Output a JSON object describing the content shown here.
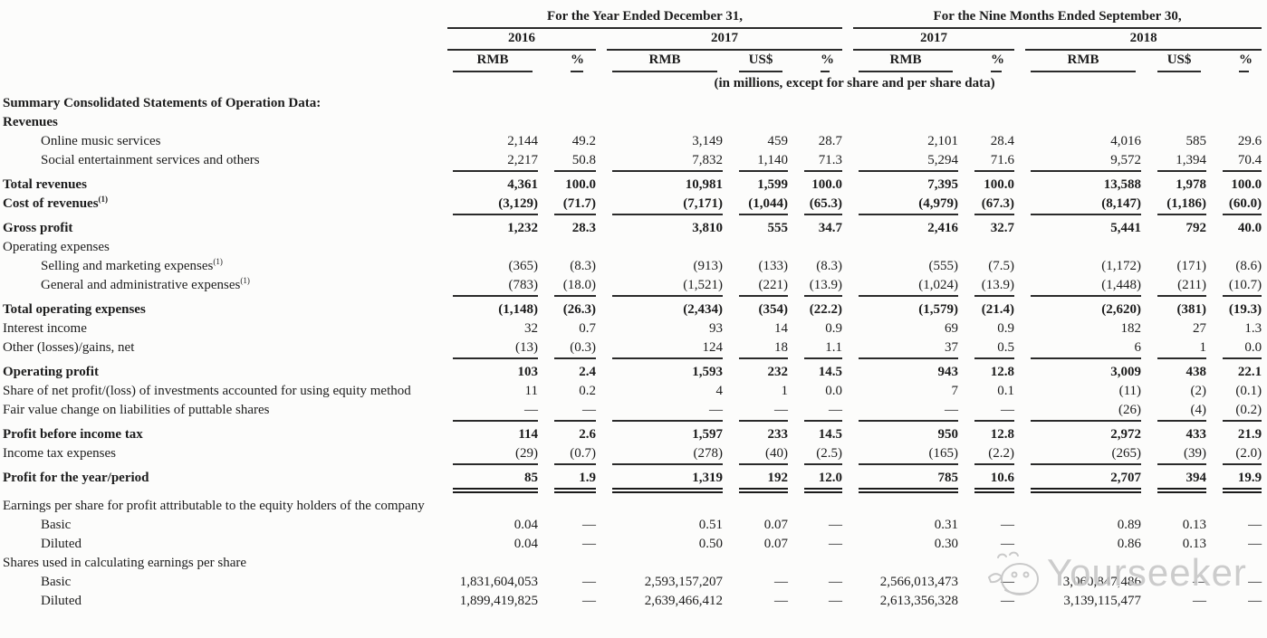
{
  "document": {
    "header": {
      "group1": {
        "title": "For the Year Ended December 31,",
        "years": [
          {
            "label": "2016",
            "cols": [
              "RMB",
              "%"
            ]
          },
          {
            "label": "2017",
            "cols": [
              "RMB",
              "US$",
              "%"
            ]
          }
        ]
      },
      "group2": {
        "title": "For the Nine Months Ended September 30,",
        "years": [
          {
            "label": "2017",
            "cols": [
              "RMB",
              "%"
            ]
          },
          {
            "label": "2018",
            "cols": [
              "RMB",
              "US$",
              "%"
            ]
          }
        ]
      },
      "units_note": "(in millions, except for share and per share data)"
    },
    "columns": [
      "2016 RMB",
      "2016 %",
      "2017 RMB",
      "2017 US$",
      "2017 %",
      "9M2017 RMB",
      "9M2017 %",
      "9M2018 RMB",
      "9M2018 US$",
      "9M2018 %"
    ],
    "rows": [
      {
        "label": "Summary Consolidated Statements of Operation Data:",
        "bold": true,
        "indent": 0,
        "values": []
      },
      {
        "label": "Revenues",
        "bold": true,
        "indent": 0,
        "values": []
      },
      {
        "label": "Online music services",
        "indent": 1,
        "values": [
          "2,144",
          "49.2",
          "3,149",
          "459",
          "28.7",
          "2,101",
          "28.4",
          "4,016",
          "585",
          "29.6"
        ]
      },
      {
        "label": "Social entertainment services and others",
        "indent": 1,
        "underline": "single",
        "values": [
          "2,217",
          "50.8",
          "7,832",
          "1,140",
          "71.3",
          "5,294",
          "71.6",
          "9,572",
          "1,394",
          "70.4"
        ]
      },
      {
        "label": "Total revenues",
        "bold": true,
        "gap": true,
        "indent": 0,
        "values": [
          "4,361",
          "100.0",
          "10,981",
          "1,599",
          "100.0",
          "7,395",
          "100.0",
          "13,588",
          "1,978",
          "100.0"
        ]
      },
      {
        "label": "Cost of revenues",
        "sup": "(1)",
        "bold": true,
        "underline": "single",
        "indent": 0,
        "values": [
          "(3,129)",
          "(71.7)",
          "(7,171)",
          "(1,044)",
          "(65.3)",
          "(4,979)",
          "(67.3)",
          "(8,147)",
          "(1,186)",
          "(60.0)"
        ]
      },
      {
        "label": "Gross profit",
        "bold": true,
        "gap": true,
        "indent": 0,
        "values": [
          "1,232",
          "28.3",
          "3,810",
          "555",
          "34.7",
          "2,416",
          "32.7",
          "5,441",
          "792",
          "40.0"
        ]
      },
      {
        "label": "Operating expenses",
        "indent": 0,
        "values": []
      },
      {
        "label": "Selling and marketing expenses",
        "sup": "(1)",
        "indent": 1,
        "values": [
          "(365)",
          "(8.3)",
          "(913)",
          "(133)",
          "(8.3)",
          "(555)",
          "(7.5)",
          "(1,172)",
          "(171)",
          "(8.6)"
        ]
      },
      {
        "label": "General and administrative expenses",
        "sup": "(1)",
        "indent": 1,
        "underline": "single",
        "values": [
          "(783)",
          "(18.0)",
          "(1,521)",
          "(221)",
          "(13.9)",
          "(1,024)",
          "(13.9)",
          "(1,448)",
          "(211)",
          "(10.7)"
        ]
      },
      {
        "label": "Total operating expenses",
        "bold": true,
        "gap": true,
        "indent": 0,
        "values": [
          "(1,148)",
          "(26.3)",
          "(2,434)",
          "(354)",
          "(22.2)",
          "(1,579)",
          "(21.4)",
          "(2,620)",
          "(381)",
          "(19.3)"
        ]
      },
      {
        "label": "Interest income",
        "indent": 0,
        "values": [
          "32",
          "0.7",
          "93",
          "14",
          "0.9",
          "69",
          "0.9",
          "182",
          "27",
          "1.3"
        ]
      },
      {
        "label": "Other (losses)/gains, net",
        "indent": 0,
        "underline": "single",
        "values": [
          "(13)",
          "(0.3)",
          "124",
          "18",
          "1.1",
          "37",
          "0.5",
          "6",
          "1",
          "0.0"
        ]
      },
      {
        "label": "Operating profit",
        "bold": true,
        "gap": true,
        "indent": 0,
        "values": [
          "103",
          "2.4",
          "1,593",
          "232",
          "14.5",
          "943",
          "12.8",
          "3,009",
          "438",
          "22.1"
        ]
      },
      {
        "label": "Share of net profit/(loss) of investments accounted for using equity method",
        "indent": 0,
        "values": [
          "11",
          "0.2",
          "4",
          "1",
          "0.0",
          "7",
          "0.1",
          "(11)",
          "(2)",
          "(0.1)"
        ]
      },
      {
        "label": "Fair value change on liabilities of puttable shares",
        "indent": 0,
        "underline": "single",
        "values": [
          "—",
          "—",
          "—",
          "—",
          "—",
          "—",
          "—",
          "(26)",
          "(4)",
          "(0.2)"
        ]
      },
      {
        "label": "Profit before income tax",
        "bold": true,
        "gap": true,
        "indent": 0,
        "values": [
          "114",
          "2.6",
          "1,597",
          "233",
          "14.5",
          "950",
          "12.8",
          "2,972",
          "433",
          "21.9"
        ]
      },
      {
        "label": "Income tax expenses",
        "indent": 0,
        "underline": "single",
        "values": [
          "(29)",
          "(0.7)",
          "(278)",
          "(40)",
          "(2.5)",
          "(165)",
          "(2.2)",
          "(265)",
          "(39)",
          "(2.0)"
        ]
      },
      {
        "label": "Profit for the year/period",
        "bold": true,
        "gap": true,
        "underline": "double",
        "indent": 0,
        "values": [
          "85",
          "1.9",
          "1,319",
          "192",
          "12.0",
          "785",
          "10.6",
          "2,707",
          "394",
          "19.9"
        ]
      },
      {
        "label": "Earnings per share for profit attributable to the equity holders of the company",
        "gap": true,
        "indent": 0,
        "values": []
      },
      {
        "label": "Basic",
        "indent": 1,
        "values": [
          "0.04",
          "—",
          "0.51",
          "0.07",
          "—",
          "0.31",
          "—",
          "0.89",
          "0.13",
          "—"
        ]
      },
      {
        "label": "Diluted",
        "indent": 1,
        "values": [
          "0.04",
          "—",
          "0.50",
          "0.07",
          "—",
          "0.30",
          "—",
          "0.86",
          "0.13",
          "—"
        ]
      },
      {
        "label": "Shares used in calculating earnings per share",
        "indent": 0,
        "values": []
      },
      {
        "label": "Basic",
        "indent": 1,
        "values": [
          "1,831,604,053",
          "—",
          "2,593,157,207",
          "—",
          "—",
          "2,566,013,473",
          "—",
          "3,060,847,486",
          "—",
          "—"
        ]
      },
      {
        "label": "Diluted",
        "indent": 1,
        "values": [
          "1,899,419,825",
          "—",
          "2,639,466,412",
          "—",
          "—",
          "2,613,356,328",
          "—",
          "3,139,115,477",
          "—",
          "—"
        ]
      }
    ],
    "watermark": {
      "text": "Yourseeker"
    }
  }
}
